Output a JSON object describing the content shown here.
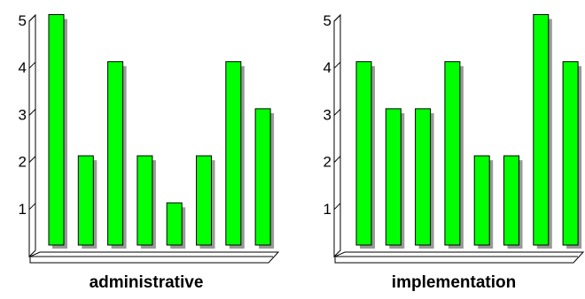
{
  "colors": {
    "bar": "#00ff00",
    "bar_shadow": "#999999",
    "stroke": "#000000",
    "background": "#ffffff"
  },
  "chart_data": [
    {
      "type": "bar",
      "title": "administrative",
      "values": [
        5,
        2,
        4,
        2,
        1,
        2,
        4,
        3
      ],
      "yticks": [
        1,
        2,
        3,
        4,
        5
      ],
      "ylim": [
        0,
        5
      ],
      "grid": false
    },
    {
      "type": "bar",
      "title": "implementation",
      "values": [
        4,
        3,
        3,
        4,
        2,
        2,
        5,
        4
      ],
      "yticks": [
        1,
        2,
        3,
        4,
        5
      ],
      "ylim": [
        0,
        5
      ],
      "grid": false
    }
  ]
}
